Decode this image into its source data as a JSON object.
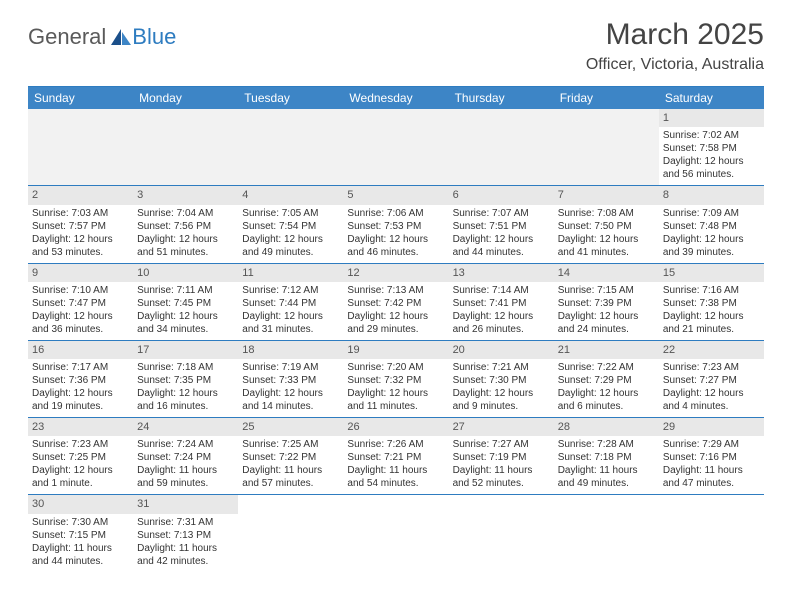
{
  "logo": {
    "part1": "General",
    "part2": "Blue"
  },
  "title": "March 2025",
  "location": "Officer, Victoria, Australia",
  "day_header_bg": "#3d85c6",
  "border_color": "#2e7cc0",
  "daynum_bg": "#e8e8e8",
  "empty_bg": "#f2f2f2",
  "day_names": [
    "Sunday",
    "Monday",
    "Tuesday",
    "Wednesday",
    "Thursday",
    "Friday",
    "Saturday"
  ],
  "weeks": [
    [
      {
        "empty": true
      },
      {
        "empty": true
      },
      {
        "empty": true
      },
      {
        "empty": true
      },
      {
        "empty": true
      },
      {
        "empty": true
      },
      {
        "day": "1",
        "sunrise": "7:02 AM",
        "sunset": "7:58 PM",
        "daylight": "12 hours and 56 minutes."
      }
    ],
    [
      {
        "day": "2",
        "sunrise": "7:03 AM",
        "sunset": "7:57 PM",
        "daylight": "12 hours and 53 minutes."
      },
      {
        "day": "3",
        "sunrise": "7:04 AM",
        "sunset": "7:56 PM",
        "daylight": "12 hours and 51 minutes."
      },
      {
        "day": "4",
        "sunrise": "7:05 AM",
        "sunset": "7:54 PM",
        "daylight": "12 hours and 49 minutes."
      },
      {
        "day": "5",
        "sunrise": "7:06 AM",
        "sunset": "7:53 PM",
        "daylight": "12 hours and 46 minutes."
      },
      {
        "day": "6",
        "sunrise": "7:07 AM",
        "sunset": "7:51 PM",
        "daylight": "12 hours and 44 minutes."
      },
      {
        "day": "7",
        "sunrise": "7:08 AM",
        "sunset": "7:50 PM",
        "daylight": "12 hours and 41 minutes."
      },
      {
        "day": "8",
        "sunrise": "7:09 AM",
        "sunset": "7:48 PM",
        "daylight": "12 hours and 39 minutes."
      }
    ],
    [
      {
        "day": "9",
        "sunrise": "7:10 AM",
        "sunset": "7:47 PM",
        "daylight": "12 hours and 36 minutes."
      },
      {
        "day": "10",
        "sunrise": "7:11 AM",
        "sunset": "7:45 PM",
        "daylight": "12 hours and 34 minutes."
      },
      {
        "day": "11",
        "sunrise": "7:12 AM",
        "sunset": "7:44 PM",
        "daylight": "12 hours and 31 minutes."
      },
      {
        "day": "12",
        "sunrise": "7:13 AM",
        "sunset": "7:42 PM",
        "daylight": "12 hours and 29 minutes."
      },
      {
        "day": "13",
        "sunrise": "7:14 AM",
        "sunset": "7:41 PM",
        "daylight": "12 hours and 26 minutes."
      },
      {
        "day": "14",
        "sunrise": "7:15 AM",
        "sunset": "7:39 PM",
        "daylight": "12 hours and 24 minutes."
      },
      {
        "day": "15",
        "sunrise": "7:16 AM",
        "sunset": "7:38 PM",
        "daylight": "12 hours and 21 minutes."
      }
    ],
    [
      {
        "day": "16",
        "sunrise": "7:17 AM",
        "sunset": "7:36 PM",
        "daylight": "12 hours and 19 minutes."
      },
      {
        "day": "17",
        "sunrise": "7:18 AM",
        "sunset": "7:35 PM",
        "daylight": "12 hours and 16 minutes."
      },
      {
        "day": "18",
        "sunrise": "7:19 AM",
        "sunset": "7:33 PM",
        "daylight": "12 hours and 14 minutes."
      },
      {
        "day": "19",
        "sunrise": "7:20 AM",
        "sunset": "7:32 PM",
        "daylight": "12 hours and 11 minutes."
      },
      {
        "day": "20",
        "sunrise": "7:21 AM",
        "sunset": "7:30 PM",
        "daylight": "12 hours and 9 minutes."
      },
      {
        "day": "21",
        "sunrise": "7:22 AM",
        "sunset": "7:29 PM",
        "daylight": "12 hours and 6 minutes."
      },
      {
        "day": "22",
        "sunrise": "7:23 AM",
        "sunset": "7:27 PM",
        "daylight": "12 hours and 4 minutes."
      }
    ],
    [
      {
        "day": "23",
        "sunrise": "7:23 AM",
        "sunset": "7:25 PM",
        "daylight": "12 hours and 1 minute."
      },
      {
        "day": "24",
        "sunrise": "7:24 AM",
        "sunset": "7:24 PM",
        "daylight": "11 hours and 59 minutes."
      },
      {
        "day": "25",
        "sunrise": "7:25 AM",
        "sunset": "7:22 PM",
        "daylight": "11 hours and 57 minutes."
      },
      {
        "day": "26",
        "sunrise": "7:26 AM",
        "sunset": "7:21 PM",
        "daylight": "11 hours and 54 minutes."
      },
      {
        "day": "27",
        "sunrise": "7:27 AM",
        "sunset": "7:19 PM",
        "daylight": "11 hours and 52 minutes."
      },
      {
        "day": "28",
        "sunrise": "7:28 AM",
        "sunset": "7:18 PM",
        "daylight": "11 hours and 49 minutes."
      },
      {
        "day": "29",
        "sunrise": "7:29 AM",
        "sunset": "7:16 PM",
        "daylight": "11 hours and 47 minutes."
      }
    ],
    [
      {
        "day": "30",
        "sunrise": "7:30 AM",
        "sunset": "7:15 PM",
        "daylight": "11 hours and 44 minutes."
      },
      {
        "day": "31",
        "sunrise": "7:31 AM",
        "sunset": "7:13 PM",
        "daylight": "11 hours and 42 minutes."
      },
      {
        "empty": true
      },
      {
        "empty": true
      },
      {
        "empty": true
      },
      {
        "empty": true
      },
      {
        "empty": true
      }
    ]
  ],
  "labels": {
    "sunrise": "Sunrise:",
    "sunset": "Sunset:",
    "daylight": "Daylight:"
  }
}
